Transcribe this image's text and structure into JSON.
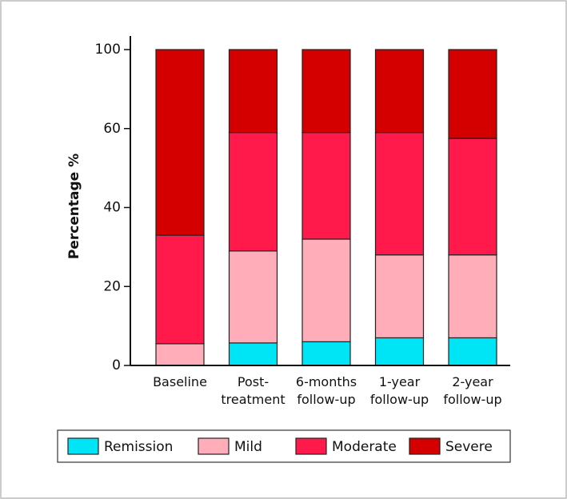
{
  "chart_data": {
    "type": "stacked_bar",
    "ylabel": "Percentage %",
    "categories": [
      "Baseline",
      "Post-\ntreatment",
      "6-months\nfollow-up",
      "1-year\nfollow-up",
      "2-year\nfollow-up"
    ],
    "series": [
      {
        "name": "Remission",
        "color": "#00e5f5",
        "values": [
          0,
          5.7,
          6,
          7,
          7
        ]
      },
      {
        "name": "Mild",
        "color": "#ffadb9",
        "values": [
          5.5,
          23.3,
          26,
          21,
          21
        ]
      },
      {
        "name": "Moderate",
        "color": "#ff1a4b",
        "values": [
          27.5,
          30,
          27,
          31,
          29.5
        ]
      },
      {
        "name": "Severe",
        "color": "#d40000",
        "values": [
          67,
          41,
          41,
          41,
          42.5
        ]
      }
    ],
    "ylim": [
      0,
      100
    ],
    "yticks": [
      0,
      20,
      40,
      60,
      100
    ],
    "legend": "bottom"
  }
}
